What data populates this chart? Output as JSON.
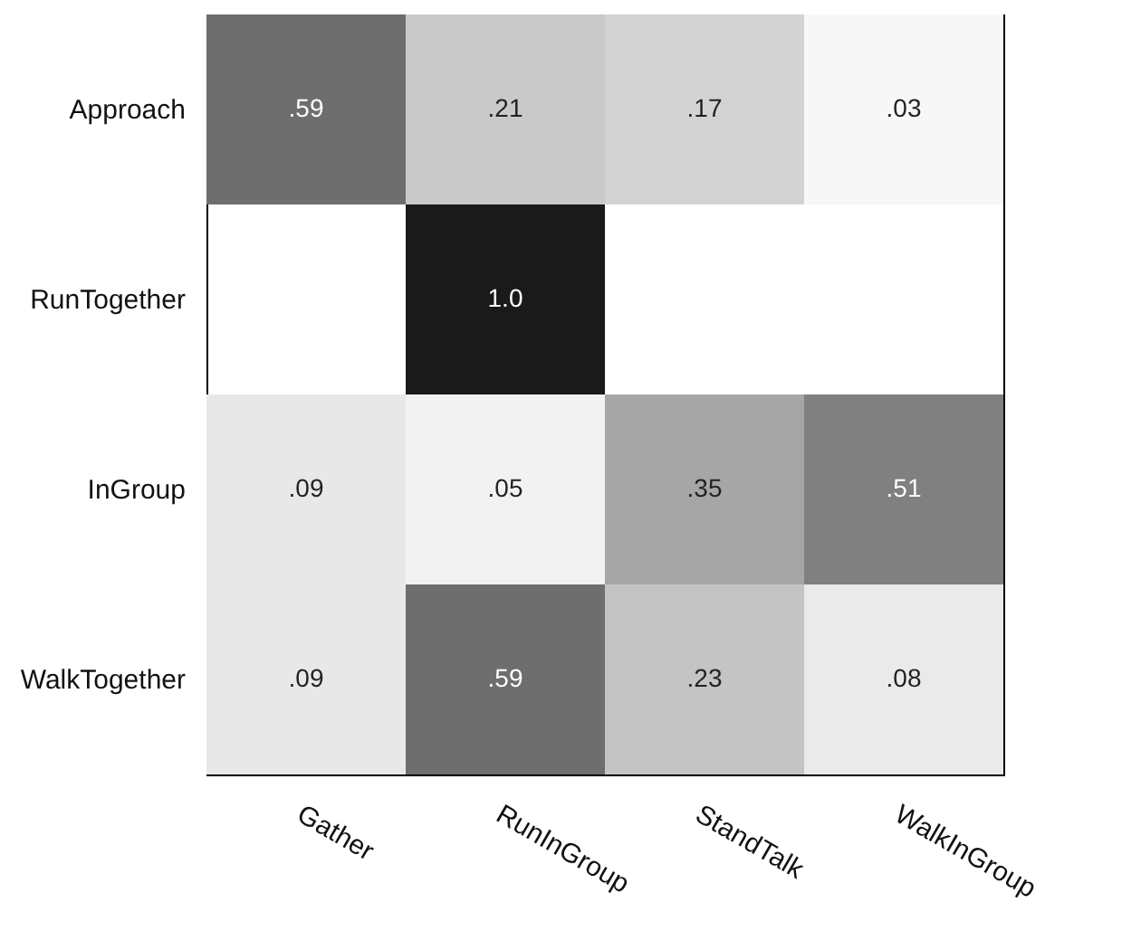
{
  "chart_data": {
    "type": "heatmap",
    "categories": [
      "Gather",
      "RunInGroup",
      "StandTalk",
      "WalkInGroup"
    ],
    "y_categories": [
      "Approach",
      "RunTogether",
      "InGroup",
      "WalkTogether"
    ],
    "cells": [
      [
        0.59,
        0.21,
        0.17,
        0.03
      ],
      [
        null,
        1.0,
        null,
        null
      ],
      [
        0.09,
        0.05,
        0.35,
        0.51
      ],
      [
        0.09,
        0.59,
        0.23,
        0.08
      ]
    ],
    "cell_labels": [
      [
        ".59",
        ".21",
        ".17",
        ".03"
      ],
      [
        null,
        "1.0",
        null,
        null
      ],
      [
        ".09",
        ".05",
        ".35",
        ".51"
      ],
      [
        ".09",
        ".59",
        ".23",
        ".08"
      ]
    ]
  }
}
